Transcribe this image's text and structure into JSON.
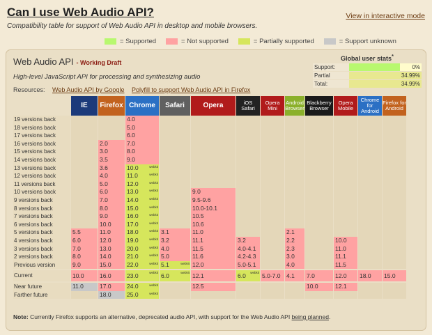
{
  "header": {
    "title": "Can I use Web Audio API?",
    "interactive_link": "View in interactive mode",
    "description": "Compatibility table for support of Web Audio API in desktop and mobile browsers."
  },
  "legend": [
    {
      "label": "= Supported",
      "color": "#b8f86f"
    },
    {
      "label": "= Not supported",
      "color": "#ffa2a2"
    },
    {
      "label": "= Partially supported",
      "color": "#d6e65c"
    },
    {
      "label": "= Support unknown",
      "color": "#c8c8c8"
    }
  ],
  "feature": {
    "title": "Web Audio API",
    "status": "- Working Draft",
    "description": "High-level JavaScript API for processing and synthesizing audio"
  },
  "stats": {
    "title": "Global user stats",
    "sup": "*",
    "rows": [
      {
        "label": "Support:",
        "value": "0%",
        "fill": 0.0
      },
      {
        "label": "Partial support:",
        "value": "34.99%",
        "fill": 0.3499
      },
      {
        "label": "Total:",
        "value": "34.99%",
        "fill": 0.3499
      }
    ]
  },
  "resources": {
    "label": "Resources:",
    "links": [
      "Web Audio API by Google",
      "Polyfill to support Web Audio API in Firefox"
    ]
  },
  "prefix": "webkit",
  "browsers": [
    {
      "name": "IE",
      "color": "#1c3a7a",
      "big": true
    },
    {
      "name": "Firefox",
      "color": "#c2621e",
      "big": true
    },
    {
      "name": "Chrome",
      "color": "#2b70c4",
      "big": true
    },
    {
      "name": "Safari",
      "color": "#606060",
      "big": true
    },
    {
      "name": "Opera",
      "color": "#b11b1b",
      "big": true
    },
    {
      "name": "iOS Safari",
      "color": "#222222",
      "big": false
    },
    {
      "name": "Opera Mini",
      "color": "#b11b1b",
      "big": false
    },
    {
      "name": "Android Browser",
      "color": "#8bb02b",
      "big": false
    },
    {
      "name": "Blackberry Browser",
      "color": "#1a1a1a",
      "big": false
    },
    {
      "name": "Opera Mobile",
      "color": "#b11b1b",
      "big": false
    },
    {
      "name": "Chrome for Android",
      "color": "#2b70c4",
      "big": false
    },
    {
      "name": "Firefox for Android",
      "color": "#c2621e",
      "big": false
    }
  ],
  "rows": [
    {
      "label": "19 versions back",
      "cells": [
        [
          "e",
          ""
        ],
        [
          "e",
          ""
        ],
        [
          "n",
          "4.0"
        ],
        [
          "e",
          ""
        ],
        [
          "e",
          ""
        ],
        [
          "e",
          ""
        ],
        [
          "e",
          ""
        ],
        [
          "e",
          ""
        ],
        [
          "e",
          ""
        ],
        [
          "e",
          ""
        ],
        [
          "e",
          ""
        ],
        [
          "e",
          ""
        ]
      ]
    },
    {
      "label": "18 versions back",
      "cells": [
        [
          "e",
          ""
        ],
        [
          "e",
          ""
        ],
        [
          "n",
          "5.0"
        ],
        [
          "e",
          ""
        ],
        [
          "e",
          ""
        ],
        [
          "e",
          ""
        ],
        [
          "e",
          ""
        ],
        [
          "e",
          ""
        ],
        [
          "e",
          ""
        ],
        [
          "e",
          ""
        ],
        [
          "e",
          ""
        ],
        [
          "e",
          ""
        ]
      ]
    },
    {
      "label": "17 versions back",
      "cells": [
        [
          "e",
          ""
        ],
        [
          "e",
          ""
        ],
        [
          "n",
          "6.0"
        ],
        [
          "e",
          ""
        ],
        [
          "e",
          ""
        ],
        [
          "e",
          ""
        ],
        [
          "e",
          ""
        ],
        [
          "e",
          ""
        ],
        [
          "e",
          ""
        ],
        [
          "e",
          ""
        ],
        [
          "e",
          ""
        ],
        [
          "e",
          ""
        ]
      ]
    },
    {
      "label": "16 versions back",
      "cells": [
        [
          "e",
          ""
        ],
        [
          "n",
          "2.0"
        ],
        [
          "n",
          "7.0"
        ],
        [
          "e",
          ""
        ],
        [
          "e",
          ""
        ],
        [
          "e",
          ""
        ],
        [
          "e",
          ""
        ],
        [
          "e",
          ""
        ],
        [
          "e",
          ""
        ],
        [
          "e",
          ""
        ],
        [
          "e",
          ""
        ],
        [
          "e",
          ""
        ]
      ]
    },
    {
      "label": "15 versions back",
      "cells": [
        [
          "e",
          ""
        ],
        [
          "n",
          "3.0"
        ],
        [
          "n",
          "8.0"
        ],
        [
          "e",
          ""
        ],
        [
          "e",
          ""
        ],
        [
          "e",
          ""
        ],
        [
          "e",
          ""
        ],
        [
          "e",
          ""
        ],
        [
          "e",
          ""
        ],
        [
          "e",
          ""
        ],
        [
          "e",
          ""
        ],
        [
          "e",
          ""
        ]
      ]
    },
    {
      "label": "14 versions back",
      "cells": [
        [
          "e",
          ""
        ],
        [
          "n",
          "3.5"
        ],
        [
          "n",
          "9.0"
        ],
        [
          "e",
          ""
        ],
        [
          "e",
          ""
        ],
        [
          "e",
          ""
        ],
        [
          "e",
          ""
        ],
        [
          "e",
          ""
        ],
        [
          "e",
          ""
        ],
        [
          "e",
          ""
        ],
        [
          "e",
          ""
        ],
        [
          "e",
          ""
        ]
      ]
    },
    {
      "label": "13 versions back",
      "cells": [
        [
          "e",
          ""
        ],
        [
          "n",
          "3.6"
        ],
        [
          "p",
          "10.0"
        ],
        [
          "e",
          ""
        ],
        [
          "e",
          ""
        ],
        [
          "e",
          ""
        ],
        [
          "e",
          ""
        ],
        [
          "e",
          ""
        ],
        [
          "e",
          ""
        ],
        [
          "e",
          ""
        ],
        [
          "e",
          ""
        ],
        [
          "e",
          ""
        ]
      ]
    },
    {
      "label": "12 versions back",
      "cells": [
        [
          "e",
          ""
        ],
        [
          "n",
          "4.0"
        ],
        [
          "p",
          "11.0"
        ],
        [
          "e",
          ""
        ],
        [
          "e",
          ""
        ],
        [
          "e",
          ""
        ],
        [
          "e",
          ""
        ],
        [
          "e",
          ""
        ],
        [
          "e",
          ""
        ],
        [
          "e",
          ""
        ],
        [
          "e",
          ""
        ],
        [
          "e",
          ""
        ]
      ]
    },
    {
      "label": "11 versions back",
      "cells": [
        [
          "e",
          ""
        ],
        [
          "n",
          "5.0"
        ],
        [
          "p",
          "12.0"
        ],
        [
          "e",
          ""
        ],
        [
          "e",
          ""
        ],
        [
          "e",
          ""
        ],
        [
          "e",
          ""
        ],
        [
          "e",
          ""
        ],
        [
          "e",
          ""
        ],
        [
          "e",
          ""
        ],
        [
          "e",
          ""
        ],
        [
          "e",
          ""
        ]
      ]
    },
    {
      "label": "10 versions back",
      "cells": [
        [
          "e",
          ""
        ],
        [
          "n",
          "6.0"
        ],
        [
          "p",
          "13.0"
        ],
        [
          "e",
          ""
        ],
        [
          "n",
          "9.0"
        ],
        [
          "e",
          ""
        ],
        [
          "e",
          ""
        ],
        [
          "e",
          ""
        ],
        [
          "e",
          ""
        ],
        [
          "e",
          ""
        ],
        [
          "e",
          ""
        ],
        [
          "e",
          ""
        ]
      ]
    },
    {
      "label": "9 versions back",
      "cells": [
        [
          "e",
          ""
        ],
        [
          "n",
          "7.0"
        ],
        [
          "p",
          "14.0"
        ],
        [
          "e",
          ""
        ],
        [
          "n",
          "9.5-9.6"
        ],
        [
          "e",
          ""
        ],
        [
          "e",
          ""
        ],
        [
          "e",
          ""
        ],
        [
          "e",
          ""
        ],
        [
          "e",
          ""
        ],
        [
          "e",
          ""
        ],
        [
          "e",
          ""
        ]
      ]
    },
    {
      "label": "8 versions back",
      "cells": [
        [
          "e",
          ""
        ],
        [
          "n",
          "8.0"
        ],
        [
          "p",
          "15.0"
        ],
        [
          "e",
          ""
        ],
        [
          "n",
          "10.0-10.1"
        ],
        [
          "e",
          ""
        ],
        [
          "e",
          ""
        ],
        [
          "e",
          ""
        ],
        [
          "e",
          ""
        ],
        [
          "e",
          ""
        ],
        [
          "e",
          ""
        ],
        [
          "e",
          ""
        ]
      ]
    },
    {
      "label": "7 versions back",
      "cells": [
        [
          "e",
          ""
        ],
        [
          "n",
          "9.0"
        ],
        [
          "p",
          "16.0"
        ],
        [
          "e",
          ""
        ],
        [
          "n",
          "10.5"
        ],
        [
          "e",
          ""
        ],
        [
          "e",
          ""
        ],
        [
          "e",
          ""
        ],
        [
          "e",
          ""
        ],
        [
          "e",
          ""
        ],
        [
          "e",
          ""
        ],
        [
          "e",
          ""
        ]
      ]
    },
    {
      "label": "6 versions back",
      "cells": [
        [
          "e",
          ""
        ],
        [
          "n",
          "10.0"
        ],
        [
          "p",
          "17.0"
        ],
        [
          "e",
          ""
        ],
        [
          "n",
          "10.6"
        ],
        [
          "e",
          ""
        ],
        [
          "e",
          ""
        ],
        [
          "e",
          ""
        ],
        [
          "e",
          ""
        ],
        [
          "e",
          ""
        ],
        [
          "e",
          ""
        ],
        [
          "e",
          ""
        ]
      ]
    },
    {
      "label": "5 versions back",
      "cells": [
        [
          "n",
          "5.5"
        ],
        [
          "n",
          "11.0"
        ],
        [
          "p",
          "18.0"
        ],
        [
          "n",
          "3.1"
        ],
        [
          "n",
          "11.0"
        ],
        [
          "e",
          ""
        ],
        [
          "e",
          ""
        ],
        [
          "n",
          "2.1"
        ],
        [
          "e",
          ""
        ],
        [
          "e",
          ""
        ],
        [
          "e",
          ""
        ],
        [
          "e",
          ""
        ]
      ]
    },
    {
      "label": "4 versions back",
      "cells": [
        [
          "n",
          "6.0"
        ],
        [
          "n",
          "12.0"
        ],
        [
          "p",
          "19.0"
        ],
        [
          "n",
          "3.2"
        ],
        [
          "n",
          "11.1"
        ],
        [
          "n",
          "3.2"
        ],
        [
          "e",
          ""
        ],
        [
          "n",
          "2.2"
        ],
        [
          "e",
          ""
        ],
        [
          "n",
          "10.0"
        ],
        [
          "e",
          ""
        ],
        [
          "e",
          ""
        ]
      ]
    },
    {
      "label": "3 versions back",
      "cells": [
        [
          "n",
          "7.0"
        ],
        [
          "n",
          "13.0"
        ],
        [
          "p",
          "20.0"
        ],
        [
          "n",
          "4.0"
        ],
        [
          "n",
          "11.5"
        ],
        [
          "n",
          "4.0-4.1"
        ],
        [
          "e",
          ""
        ],
        [
          "n",
          "2.3"
        ],
        [
          "e",
          ""
        ],
        [
          "n",
          "11.0"
        ],
        [
          "e",
          ""
        ],
        [
          "e",
          ""
        ]
      ]
    },
    {
      "label": "2 versions back",
      "cells": [
        [
          "n",
          "8.0"
        ],
        [
          "n",
          "14.0"
        ],
        [
          "p",
          "21.0"
        ],
        [
          "n",
          "5.0"
        ],
        [
          "n",
          "11.6"
        ],
        [
          "n",
          "4.2-4.3"
        ],
        [
          "e",
          ""
        ],
        [
          "n",
          "3.0"
        ],
        [
          "e",
          ""
        ],
        [
          "n",
          "11.1"
        ],
        [
          "e",
          ""
        ],
        [
          "e",
          ""
        ]
      ]
    },
    {
      "label": "Previous version",
      "cells": [
        [
          "n",
          "9.0"
        ],
        [
          "n",
          "15.0"
        ],
        [
          "p",
          "22.0"
        ],
        [
          "p",
          "5.1"
        ],
        [
          "n",
          "12.0"
        ],
        [
          "n",
          "5.0-5.1"
        ],
        [
          "e",
          ""
        ],
        [
          "n",
          "4.0"
        ],
        [
          "e",
          ""
        ],
        [
          "n",
          "11.5"
        ],
        [
          "e",
          ""
        ],
        [
          "e",
          ""
        ]
      ]
    },
    {
      "label": "Current",
      "cells": [
        [
          "n",
          "10.0"
        ],
        [
          "n",
          "16.0"
        ],
        [
          "p",
          "23.0"
        ],
        [
          "p",
          "6.0"
        ],
        [
          "n",
          "12.1"
        ],
        [
          "p",
          "6.0"
        ],
        [
          "n",
          "5.0-7.0"
        ],
        [
          "n",
          "4.1"
        ],
        [
          "n",
          "7.0"
        ],
        [
          "n",
          "12.0"
        ],
        [
          "n",
          "18.0"
        ],
        [
          "n",
          "15.0"
        ]
      ]
    },
    {
      "label": "Near future",
      "cells": [
        [
          "u",
          "11.0"
        ],
        [
          "n",
          "17.0"
        ],
        [
          "p",
          "24.0"
        ],
        [
          "e",
          ""
        ],
        [
          "n",
          "12.5"
        ],
        [
          "e",
          ""
        ],
        [
          "e",
          ""
        ],
        [
          "e",
          ""
        ],
        [
          "n",
          "10.0"
        ],
        [
          "n",
          "12.1"
        ],
        [
          "e",
          ""
        ],
        [
          "e",
          ""
        ]
      ]
    },
    {
      "label": "Farther future",
      "cells": [
        [
          "e",
          ""
        ],
        [
          "u",
          "18.0"
        ],
        [
          "p",
          "25.0"
        ],
        [
          "e",
          ""
        ],
        [
          "e",
          ""
        ],
        [
          "e",
          ""
        ],
        [
          "e",
          ""
        ],
        [
          "e",
          ""
        ],
        [
          "e",
          ""
        ],
        [
          "e",
          ""
        ],
        [
          "e",
          ""
        ],
        [
          "e",
          ""
        ]
      ]
    }
  ],
  "note": {
    "label": "Note:",
    "text": " Currently Firefox supports an alternative, deprecated audio API, with support for the Web Audio API ",
    "link": "being planned",
    "end": "."
  }
}
